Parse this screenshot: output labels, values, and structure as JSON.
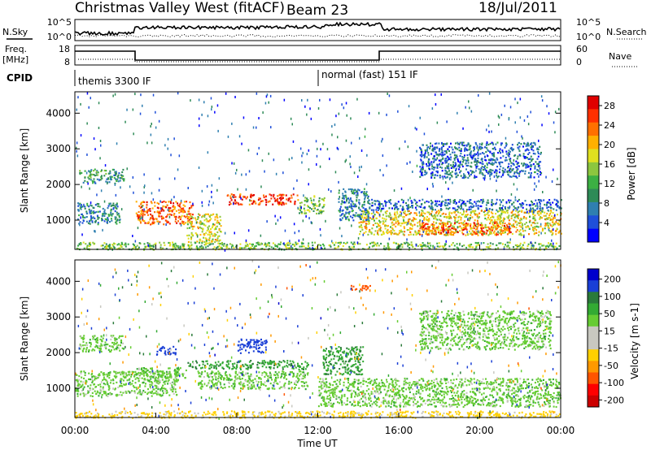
{
  "header": {
    "title": "Christmas Valley West (fitACF)",
    "beam": "Beam 23",
    "date": "18/Jul/2011"
  },
  "top_strip": {
    "nsky_label": "N.Sky",
    "nsky_ticks": [
      "10^5",
      "10^0"
    ],
    "nsearch_label": "N.Search",
    "nsearch_ticks": [
      "10^5",
      "10^0"
    ],
    "freq_label": "Freq.",
    "freq_unit": "[MHz]",
    "freq_ticks": [
      "18",
      "8"
    ],
    "nave_label": "Nave",
    "nave_ticks": [
      "60",
      "0"
    ],
    "cpid_label": "CPID",
    "cpid_segments": [
      "themis 3300 IF",
      "normal (fast) 151 IF"
    ]
  },
  "colors": {
    "power": [
      "#0000ff",
      "#1f4fd9",
      "#2f7fb0",
      "#2e8b57",
      "#3cb043",
      "#8cc63f",
      "#e0e020",
      "#ffb000",
      "#ff7000",
      "#ff3000",
      "#e00000"
    ],
    "velocity": [
      "#0000cc",
      "#1a3fd6",
      "#2a7a3a",
      "#33aa33",
      "#66cc33",
      "#c8c8c0",
      "#c8c8c0",
      "#ffd000",
      "#ff9900",
      "#ff5500",
      "#ff0000",
      "#cc0000"
    ]
  },
  "chart_data": [
    {
      "type": "heatmap",
      "panel": "power",
      "title": "",
      "xlabel": "Time UT",
      "ylabel": "Slant Range [km]",
      "x_ticks": [
        "00:00",
        "04:00",
        "08:00",
        "12:00",
        "16:00",
        "20:00",
        "00:00"
      ],
      "xlim_hours": [
        0,
        24
      ],
      "y_ticks": [
        1000,
        2000,
        3000,
        4000
      ],
      "ylim": [
        180,
        4600
      ],
      "colorbar_label": "Power [dB]",
      "colorbar_ticks": [
        4,
        8,
        12,
        16,
        20,
        24,
        28
      ],
      "colorbar_range": [
        0,
        30
      ],
      "features": [
        {
          "t0": 0.2,
          "t1": 2.4,
          "r0": 2050,
          "r1": 2450,
          "level": 10
        },
        {
          "t0": 0.1,
          "t1": 2.2,
          "r0": 900,
          "r1": 1500,
          "level": 8
        },
        {
          "t0": 3.0,
          "t1": 5.8,
          "r0": 900,
          "r1": 1550,
          "level": 24
        },
        {
          "t0": 5.5,
          "t1": 7.2,
          "r0": 400,
          "r1": 1200,
          "level": 18
        },
        {
          "t0": 7.5,
          "t1": 11.0,
          "r0": 1450,
          "r1": 1750,
          "level": 26
        },
        {
          "t0": 11.0,
          "t1": 12.3,
          "r0": 1200,
          "r1": 1700,
          "level": 14
        },
        {
          "t0": 14.0,
          "t1": 24.0,
          "r0": 600,
          "r1": 1300,
          "level": 18
        },
        {
          "t0": 17.0,
          "t1": 21.5,
          "r0": 600,
          "r1": 950,
          "level": 24
        },
        {
          "t0": 0.0,
          "t1": 24.0,
          "r0": 190,
          "r1": 400,
          "level": 14
        },
        {
          "t0": 14.5,
          "t1": 24.0,
          "r0": 1300,
          "r1": 1600,
          "level": 6
        },
        {
          "t0": 17.0,
          "t1": 23.0,
          "r0": 2200,
          "r1": 3200,
          "level": 6
        },
        {
          "t0": 13.0,
          "t1": 14.5,
          "r0": 1000,
          "r1": 1900,
          "level": 8
        }
      ]
    },
    {
      "type": "heatmap",
      "panel": "velocity",
      "title": "",
      "xlabel": "Time UT",
      "ylabel": "Slant Range [km]",
      "x_ticks": [
        "00:00",
        "04:00",
        "08:00",
        "12:00",
        "16:00",
        "20:00",
        "00:00"
      ],
      "xlim_hours": [
        0,
        24
      ],
      "y_ticks": [
        1000,
        2000,
        3000,
        4000
      ],
      "ylim": [
        180,
        4600
      ],
      "colorbar_label": "Velocity [m s-1]",
      "colorbar_ticks": [
        200,
        100,
        50,
        15,
        -15,
        -50,
        -100,
        -200
      ],
      "colorbar_range": [
        -250,
        250
      ],
      "features": [
        {
          "t0": 0.2,
          "t1": 2.4,
          "r0": 2050,
          "r1": 2500,
          "v": 0
        },
        {
          "t0": 0.0,
          "t1": 5.0,
          "r0": 800,
          "r1": 1500,
          "v": 0
        },
        {
          "t0": 3.0,
          "t1": 5.5,
          "r0": 1200,
          "r1": 1600,
          "v": 0
        },
        {
          "t0": 4.0,
          "t1": 5.0,
          "r0": 1950,
          "r1": 2200,
          "v": 120
        },
        {
          "t0": 5.5,
          "t1": 11.5,
          "r0": 1550,
          "r1": 1800,
          "v": 40
        },
        {
          "t0": 6.0,
          "t1": 11.5,
          "r0": 1000,
          "r1": 1500,
          "v": 0
        },
        {
          "t0": 12.0,
          "t1": 24.0,
          "r0": 500,
          "r1": 1300,
          "v": 0
        },
        {
          "t0": 0.0,
          "t1": 24.0,
          "r0": 190,
          "r1": 380,
          "v": -60
        },
        {
          "t0": 8.0,
          "t1": 9.5,
          "r0": 2000,
          "r1": 2400,
          "v": 130
        },
        {
          "t0": 13.5,
          "t1": 14.6,
          "r0": 3750,
          "r1": 3900,
          "v": -220
        },
        {
          "t0": 17.0,
          "t1": 23.5,
          "r0": 2100,
          "r1": 3200,
          "v": 0
        },
        {
          "t0": 12.2,
          "t1": 14.2,
          "r0": 1400,
          "r1": 2200,
          "v": 40
        }
      ]
    }
  ]
}
